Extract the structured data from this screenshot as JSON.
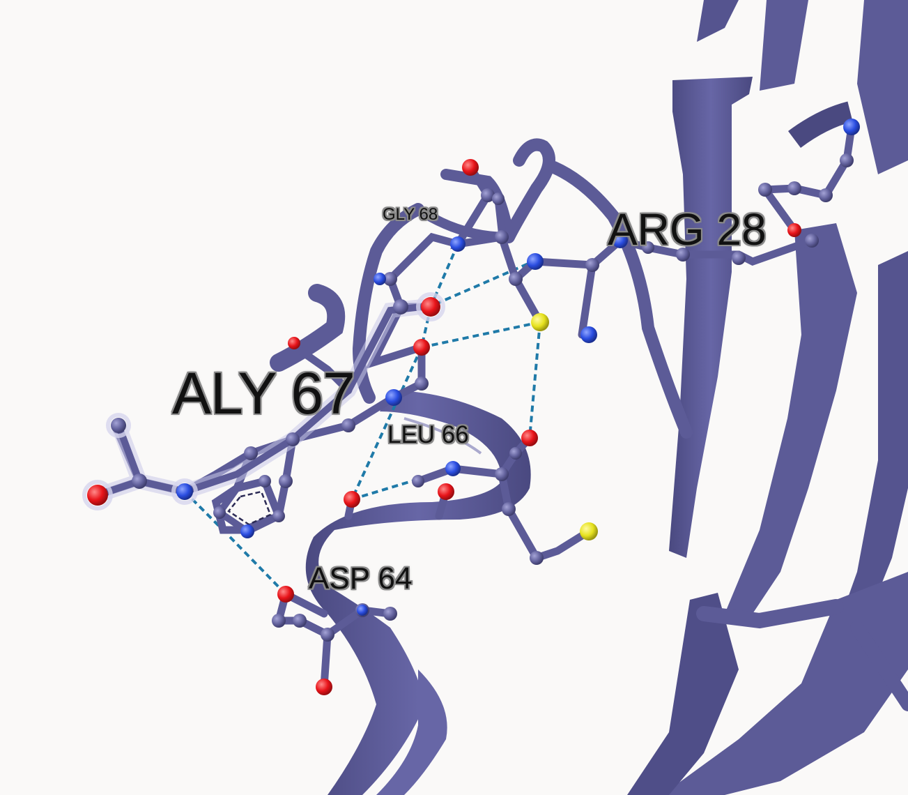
{
  "viewer": {
    "colors": {
      "background": "#faf9f8",
      "ribbon": "#5c5b97",
      "ribbon_dark": "#47467a",
      "carbon": "#64639e",
      "oxygen": "#e8141a",
      "nitrogen": "#2a4de0",
      "sulfur": "#e6e21f",
      "hbond": "#1f7aa8"
    },
    "labels": {
      "aly67": "ALY 67",
      "arg28": "ARG 28",
      "leu66": "LEU 66",
      "asp64": "ASP 64",
      "gly68": "GLY 68"
    }
  }
}
